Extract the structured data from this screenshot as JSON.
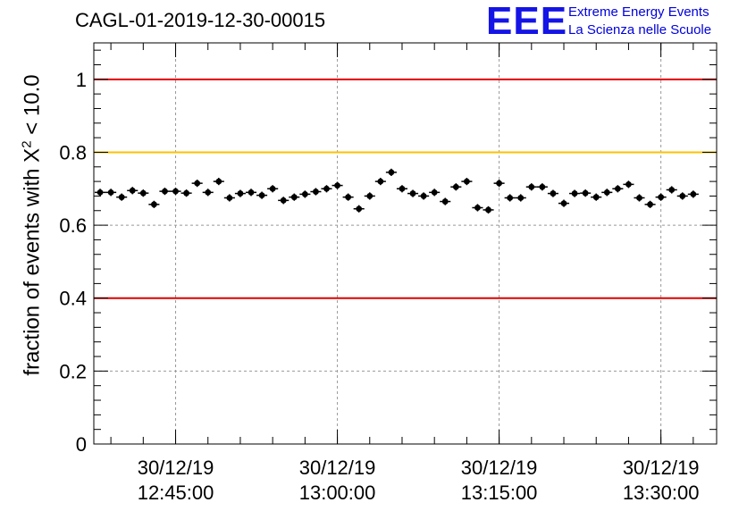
{
  "title": "CAGL-01-2019-12-30-00015",
  "logo": {
    "mark": "EEE",
    "line1": "Extreme Energy Events",
    "line2": "La Scienza nelle Scuole"
  },
  "colors": {
    "limit_red": "#e00000",
    "limit_orange": "#ffc000",
    "marker": "#000000",
    "logo_blue": "#1414e6"
  },
  "chart_data": {
    "type": "scatter",
    "ylabel_prefix": "fraction of events with ",
    "ylabel_symbol": "X",
    "ylabel_sup": "2",
    "ylabel_suffix": " < 10.0",
    "ylim": [
      0,
      1.1
    ],
    "yticks": [
      0,
      0.2,
      0.4,
      0.6,
      0.8,
      1
    ],
    "ytick_labels": [
      "0",
      "0.2",
      "0.4",
      "0.6",
      "0.8",
      "1"
    ],
    "xlim": [
      "12:37:25",
      "13:35:10"
    ],
    "xticks": [
      {
        "time": "12:45:00",
        "date": "30/12/19",
        "label": "12:45:00"
      },
      {
        "time": "13:00:00",
        "date": "30/12/19",
        "label": "13:00:00"
      },
      {
        "time": "13:15:00",
        "date": "30/12/19",
        "label": "13:15:00"
      },
      {
        "time": "13:30:00",
        "date": "30/12/19",
        "label": "13:30:00"
      }
    ],
    "grid": true,
    "reference_lines": [
      {
        "y": 1.0,
        "color": "red"
      },
      {
        "y": 0.8,
        "color": "orange"
      },
      {
        "y": 0.4,
        "color": "red"
      }
    ],
    "error_bar": 0.01,
    "points": [
      {
        "x": "12:38:00",
        "y": 0.69
      },
      {
        "x": "12:39:00",
        "y": 0.69
      },
      {
        "x": "12:40:00",
        "y": 0.677
      },
      {
        "x": "12:41:00",
        "y": 0.695
      },
      {
        "x": "12:42:00",
        "y": 0.688
      },
      {
        "x": "12:43:00",
        "y": 0.657
      },
      {
        "x": "12:44:00",
        "y": 0.693
      },
      {
        "x": "12:45:00",
        "y": 0.693
      },
      {
        "x": "12:46:00",
        "y": 0.688
      },
      {
        "x": "12:47:00",
        "y": 0.715
      },
      {
        "x": "12:48:00",
        "y": 0.69
      },
      {
        "x": "12:49:00",
        "y": 0.72
      },
      {
        "x": "12:50:00",
        "y": 0.675
      },
      {
        "x": "12:51:00",
        "y": 0.687
      },
      {
        "x": "12:52:00",
        "y": 0.69
      },
      {
        "x": "12:53:00",
        "y": 0.682
      },
      {
        "x": "12:54:00",
        "y": 0.7
      },
      {
        "x": "12:55:00",
        "y": 0.668
      },
      {
        "x": "12:56:00",
        "y": 0.677
      },
      {
        "x": "12:57:00",
        "y": 0.685
      },
      {
        "x": "12:58:00",
        "y": 0.692
      },
      {
        "x": "12:59:00",
        "y": 0.7
      },
      {
        "x": "13:00:00",
        "y": 0.709
      },
      {
        "x": "13:01:00",
        "y": 0.677
      },
      {
        "x": "13:02:00",
        "y": 0.645
      },
      {
        "x": "13:03:00",
        "y": 0.68
      },
      {
        "x": "13:04:00",
        "y": 0.72
      },
      {
        "x": "13:05:00",
        "y": 0.745
      },
      {
        "x": "13:06:00",
        "y": 0.7
      },
      {
        "x": "13:07:00",
        "y": 0.687
      },
      {
        "x": "13:08:00",
        "y": 0.68
      },
      {
        "x": "13:09:00",
        "y": 0.69
      },
      {
        "x": "13:10:00",
        "y": 0.665
      },
      {
        "x": "13:11:00",
        "y": 0.705
      },
      {
        "x": "13:12:00",
        "y": 0.72
      },
      {
        "x": "13:13:00",
        "y": 0.648
      },
      {
        "x": "13:14:00",
        "y": 0.642
      },
      {
        "x": "13:15:00",
        "y": 0.715
      },
      {
        "x": "13:16:00",
        "y": 0.675
      },
      {
        "x": "13:17:00",
        "y": 0.675
      },
      {
        "x": "13:18:00",
        "y": 0.705
      },
      {
        "x": "13:19:00",
        "y": 0.705
      },
      {
        "x": "13:20:00",
        "y": 0.687
      },
      {
        "x": "13:21:00",
        "y": 0.66
      },
      {
        "x": "13:22:00",
        "y": 0.687
      },
      {
        "x": "13:23:00",
        "y": 0.688
      },
      {
        "x": "13:24:00",
        "y": 0.677
      },
      {
        "x": "13:25:00",
        "y": 0.69
      },
      {
        "x": "13:26:00",
        "y": 0.7
      },
      {
        "x": "13:27:00",
        "y": 0.712
      },
      {
        "x": "13:28:00",
        "y": 0.675
      },
      {
        "x": "13:29:00",
        "y": 0.657
      },
      {
        "x": "13:30:00",
        "y": 0.677
      },
      {
        "x": "13:31:00",
        "y": 0.697
      },
      {
        "x": "13:32:00",
        "y": 0.68
      },
      {
        "x": "13:33:00",
        "y": 0.685
      }
    ]
  }
}
